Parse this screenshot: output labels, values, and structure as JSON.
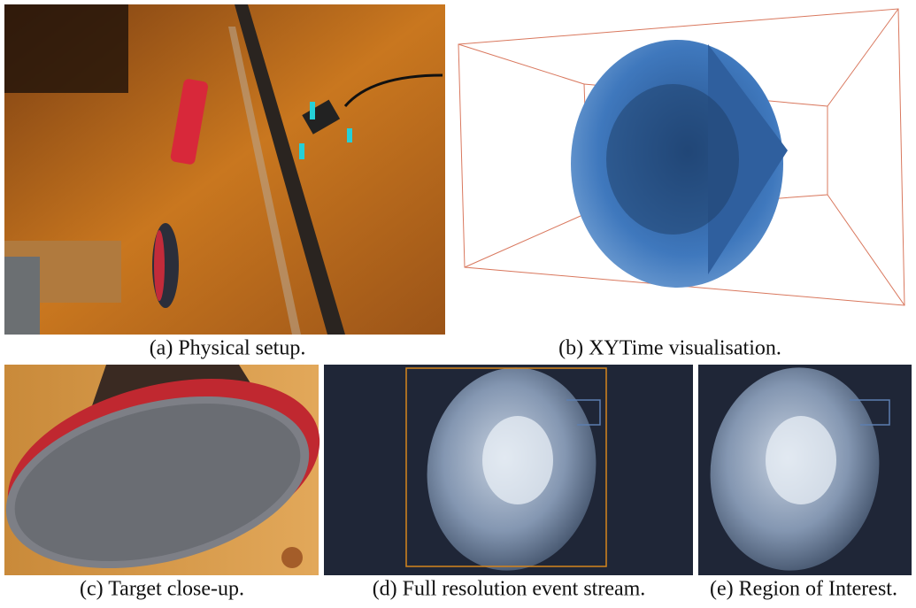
{
  "subfigures": [
    {
      "caption": "(a) Physical setup."
    },
    {
      "caption": "(b) XYTime visualisation."
    },
    {
      "caption": "(c) Target close-up."
    },
    {
      "caption": "(d) Full resolution event stream."
    },
    {
      "caption": "(e) Region of Interest."
    }
  ]
}
